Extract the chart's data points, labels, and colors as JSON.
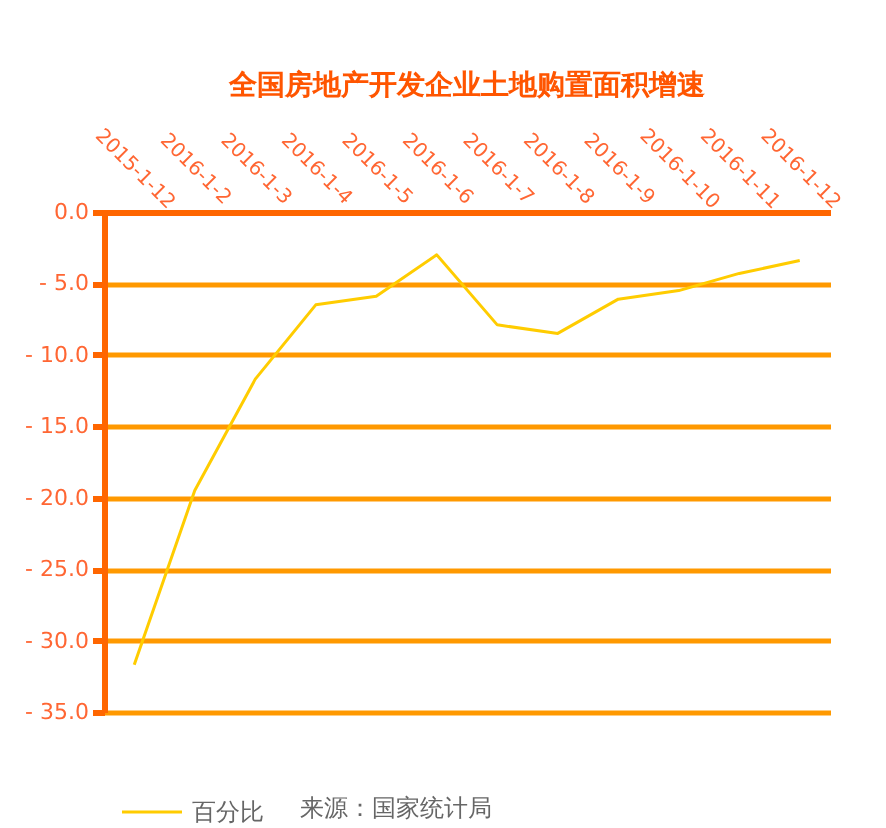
{
  "chart_data": {
    "type": "line",
    "title": "全国房地产开发企业土地购置面积增速",
    "categories": [
      "2015-1-12",
      "2016-1-2",
      "2016-1-3",
      "2016-1-4",
      "2016-1-5",
      "2016-1-6",
      "2016-1-7",
      "2016-1-8",
      "2016-1-9",
      "2016-1-10",
      "2016-1-11",
      "2016-1-12"
    ],
    "series": [
      {
        "name": "百分比",
        "color": "#ffcc00",
        "values": [
          -31.7,
          -19.5,
          -11.7,
          -6.5,
          -5.9,
          -3.0,
          -7.9,
          -8.5,
          -6.1,
          -5.5,
          -4.3,
          -3.4
        ]
      }
    ],
    "ylim": [
      -35,
      0
    ],
    "yticks": [
      {
        "value": 0,
        "label": "0.0"
      },
      {
        "value": -5,
        "label": "- 5.0"
      },
      {
        "value": -10,
        "label": "- 10.0"
      },
      {
        "value": -15,
        "label": "- 15.0"
      },
      {
        "value": -20,
        "label": "- 20.0"
      },
      {
        "value": -25,
        "label": "- 25.0"
      },
      {
        "value": -30,
        "label": "- 30.0"
      },
      {
        "value": -35,
        "label": "- 35.0"
      }
    ],
    "grid": "y",
    "legend": "bottom",
    "marker": "none",
    "line_style": "solid",
    "annotations": [
      "来源：国家统计局"
    ]
  }
}
